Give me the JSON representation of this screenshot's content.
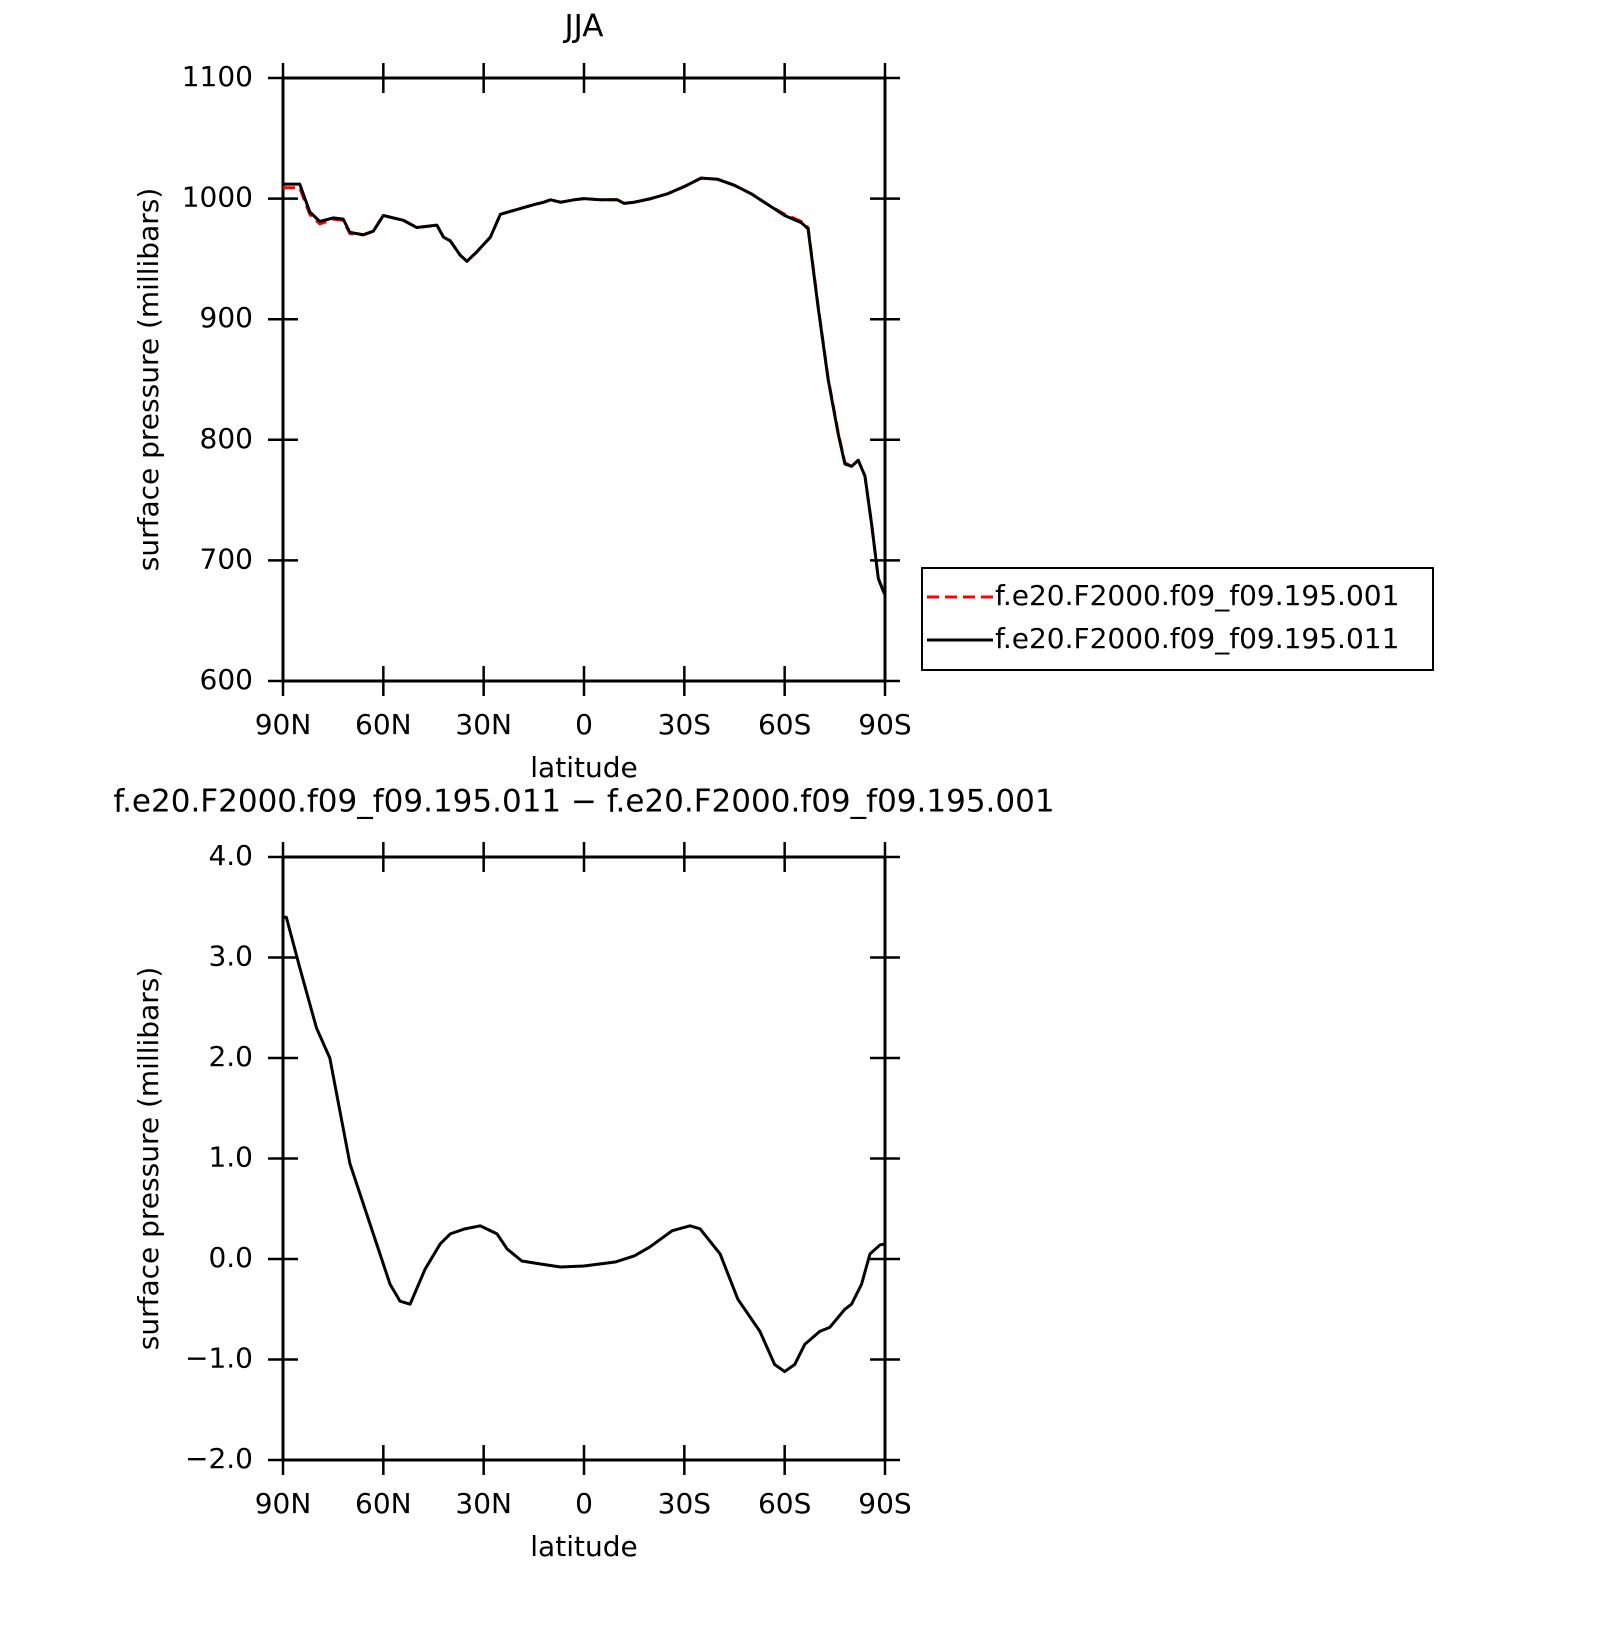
{
  "chart_data": [
    {
      "type": "line",
      "title": "JJA",
      "xlabel": "latitude",
      "ylabel": "surface pressure (millibars)",
      "x": [
        90,
        85,
        82,
        79,
        75,
        72,
        70,
        66,
        63,
        60,
        57,
        54,
        50,
        47,
        44,
        42,
        40,
        37,
        35,
        32,
        28,
        25,
        20,
        15,
        12,
        10,
        7,
        3,
        0,
        -5,
        -10,
        -12,
        -15,
        -20,
        -25,
        -30,
        -35,
        -40,
        -45,
        -50,
        -55,
        -60,
        -65,
        -67,
        -70,
        -73,
        -76,
        -78,
        -80,
        -82,
        -84,
        -86,
        -88,
        -90
      ],
      "series": [
        {
          "name": "f.e20.F2000.f09_f09.195.001",
          "color": "#ff0000",
          "line_style": "dashed",
          "values": [
            1009,
            1009,
            987,
            979,
            983,
            982,
            971,
            970,
            973,
            986,
            984,
            982,
            976,
            977,
            978,
            968,
            965,
            953,
            948,
            956,
            968,
            987,
            991,
            995,
            997,
            999,
            997,
            999,
            1000,
            999,
            999,
            996,
            997,
            1000,
            1004,
            1010,
            1017,
            1016,
            1011,
            1004,
            995,
            987,
            981,
            976,
            911,
            851,
            806,
            781,
            778,
            783,
            770,
            730,
            685,
            671
          ]
        },
        {
          "name": "f.e20.F2000.f09_f09.195.011",
          "color": "#000000",
          "line_style": "solid",
          "values": [
            1012,
            1012,
            989,
            981,
            984,
            983,
            972,
            970,
            973,
            986,
            984,
            982,
            976,
            977,
            978,
            968,
            965,
            953,
            948,
            956,
            968,
            987,
            991,
            995,
            997,
            999,
            997,
            999,
            1000,
            999,
            999,
            996,
            997,
            1000,
            1004,
            1010,
            1017,
            1016,
            1011,
            1004,
            995,
            986,
            980,
            975,
            910,
            850,
            805,
            780,
            778,
            783,
            770,
            730,
            685,
            671
          ]
        }
      ],
      "xlim": [
        90,
        -90
      ],
      "xticks": [
        {
          "value": 90,
          "label": "90N"
        },
        {
          "value": 60,
          "label": "60N"
        },
        {
          "value": 30,
          "label": "30N"
        },
        0,
        {
          "value": -30,
          "label": "30S"
        },
        {
          "value": -60,
          "label": "60S"
        },
        {
          "value": -90,
          "label": "90S"
        }
      ],
      "ylim": [
        600,
        1100
      ],
      "yticks": [
        600,
        700,
        800,
        900,
        1000,
        1100
      ],
      "legend": "right"
    },
    {
      "type": "line",
      "title": "f.e20.F2000.f09_f09.195.011 − f.e20.F2000.f09_f09.195.001",
      "xlabel": "latitude",
      "ylabel": "surface pressure (millibars)",
      "x": [
        90,
        89,
        85,
        80,
        76,
        70,
        63,
        58,
        55,
        52,
        47.5,
        43,
        40,
        35.6,
        31,
        26,
        23,
        18.6,
        13,
        7,
        0,
        -9.3,
        -15,
        -19.7,
        -26.3,
        -31.7,
        -34.7,
        -40.7,
        -46,
        -52.6,
        -57,
        -60,
        -63,
        -66,
        -70.5,
        -73.5,
        -78,
        -80,
        -83,
        -85.5,
        -88.5,
        -90
      ],
      "values": [
        3.4,
        3.4,
        2.9,
        2.3,
        2.0,
        0.95,
        0.25,
        -0.25,
        -0.42,
        -0.45,
        -0.1,
        0.15,
        0.25,
        0.3,
        0.33,
        0.25,
        0.1,
        -0.02,
        -0.05,
        -0.08,
        -0.07,
        -0.03,
        0.03,
        0.12,
        0.28,
        0.33,
        0.3,
        0.05,
        -0.4,
        -0.72,
        -1.05,
        -1.12,
        -1.05,
        -0.85,
        -0.72,
        -0.68,
        -0.5,
        -0.45,
        -0.25,
        0.05,
        0.14,
        0.15
      ],
      "color": "#000000",
      "xlim": [
        90,
        -90
      ],
      "xticks": [
        {
          "value": 90,
          "label": "90N"
        },
        {
          "value": 60,
          "label": "60N"
        },
        {
          "value": 30,
          "label": "30N"
        },
        0,
        {
          "value": -30,
          "label": "30S"
        },
        {
          "value": -60,
          "label": "60S"
        },
        {
          "value": -90,
          "label": "90S"
        }
      ],
      "ylim": [
        -2,
        4
      ],
      "yticks": [
        {
          "value": -2,
          "label": "−2.0"
        },
        {
          "value": -1,
          "label": "−1.0"
        },
        {
          "value": 0,
          "label": "0.0"
        },
        {
          "value": 1,
          "label": "1.0"
        },
        {
          "value": 2,
          "label": "2.0"
        },
        {
          "value": 3,
          "label": "3.0"
        },
        {
          "value": 4,
          "label": "4.0"
        }
      ]
    }
  ]
}
